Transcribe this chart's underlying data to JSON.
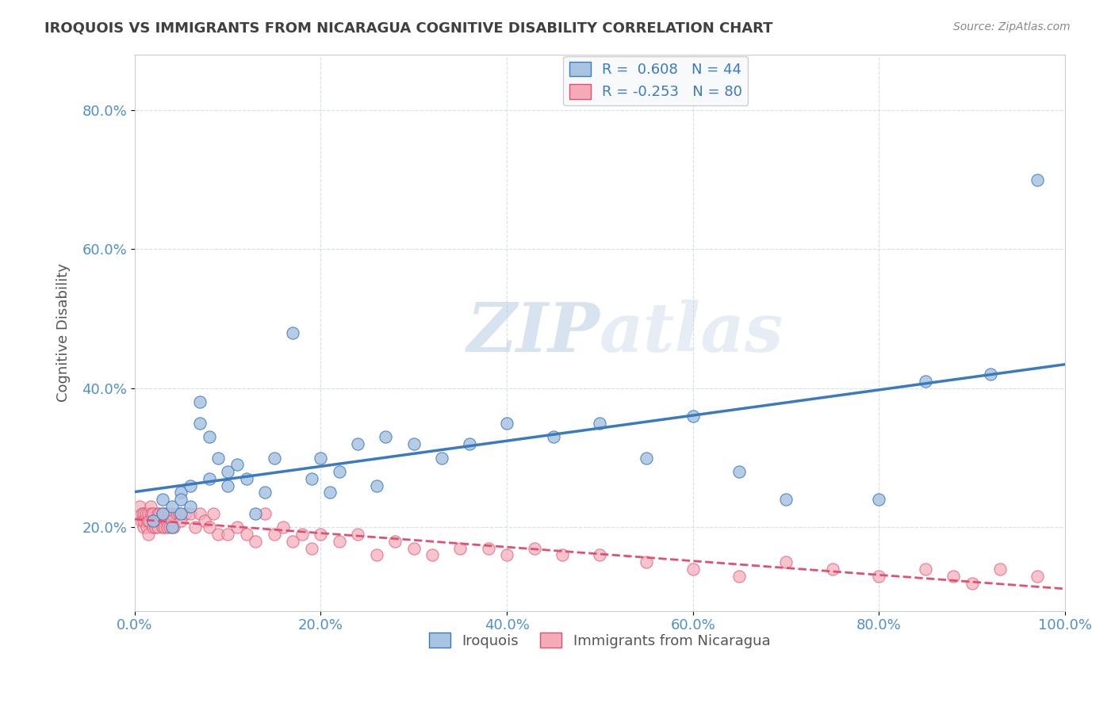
{
  "title": "IROQUOIS VS IMMIGRANTS FROM NICARAGUA COGNITIVE DISABILITY CORRELATION CHART",
  "source": "Source: ZipAtlas.com",
  "ylabel": "Cognitive Disability",
  "x_min": 0.0,
  "x_max": 1.0,
  "y_min": 0.08,
  "y_max": 0.88,
  "blue_label": "Iroquois",
  "pink_label": "Immigrants from Nicaragua",
  "blue_R": 0.608,
  "blue_N": 44,
  "pink_R": -0.253,
  "pink_N": 80,
  "blue_color": "#a8c4e0",
  "blue_line_color": "#3a7abf",
  "pink_color": "#f5aab8",
  "pink_line_color": "#e05070",
  "background_color": "#ffffff",
  "watermark_zip": "ZIP",
  "watermark_atlas": "atlas",
  "grid_color": "#c8d8e8",
  "title_color": "#404040",
  "tick_label_color": "#5090c8",
  "blue_x_data": [
    0.02,
    0.03,
    0.03,
    0.04,
    0.04,
    0.05,
    0.05,
    0.05,
    0.06,
    0.06,
    0.07,
    0.07,
    0.08,
    0.08,
    0.09,
    0.1,
    0.1,
    0.11,
    0.12,
    0.13,
    0.14,
    0.15,
    0.17,
    0.19,
    0.2,
    0.21,
    0.22,
    0.24,
    0.26,
    0.27,
    0.3,
    0.33,
    0.36,
    0.4,
    0.45,
    0.5,
    0.55,
    0.6,
    0.65,
    0.7,
    0.8,
    0.85,
    0.92,
    0.97
  ],
  "blue_y_data": [
    0.21,
    0.22,
    0.24,
    0.2,
    0.23,
    0.25,
    0.22,
    0.24,
    0.23,
    0.26,
    0.35,
    0.38,
    0.33,
    0.27,
    0.3,
    0.26,
    0.28,
    0.29,
    0.27,
    0.22,
    0.25,
    0.3,
    0.48,
    0.27,
    0.3,
    0.25,
    0.28,
    0.32,
    0.26,
    0.33,
    0.32,
    0.3,
    0.32,
    0.35,
    0.33,
    0.35,
    0.3,
    0.36,
    0.28,
    0.24,
    0.24,
    0.41,
    0.42,
    0.7
  ],
  "pink_x_data": [
    0.005,
    0.007,
    0.008,
    0.01,
    0.01,
    0.01,
    0.012,
    0.013,
    0.014,
    0.015,
    0.015,
    0.016,
    0.017,
    0.018,
    0.02,
    0.02,
    0.02,
    0.022,
    0.023,
    0.025,
    0.025,
    0.027,
    0.028,
    0.03,
    0.03,
    0.03,
    0.032,
    0.033,
    0.034,
    0.035,
    0.037,
    0.038,
    0.04,
    0.04,
    0.042,
    0.045,
    0.048,
    0.05,
    0.055,
    0.06,
    0.065,
    0.07,
    0.075,
    0.08,
    0.085,
    0.09,
    0.1,
    0.11,
    0.12,
    0.13,
    0.14,
    0.15,
    0.16,
    0.17,
    0.18,
    0.19,
    0.2,
    0.22,
    0.24,
    0.26,
    0.28,
    0.3,
    0.32,
    0.35,
    0.38,
    0.4,
    0.43,
    0.46,
    0.5,
    0.55,
    0.6,
    0.65,
    0.7,
    0.75,
    0.8,
    0.85,
    0.88,
    0.9,
    0.93,
    0.97
  ],
  "pink_y_data": [
    0.23,
    0.21,
    0.22,
    0.22,
    0.2,
    0.21,
    0.22,
    0.2,
    0.21,
    0.22,
    0.19,
    0.21,
    0.23,
    0.22,
    0.2,
    0.22,
    0.21,
    0.2,
    0.21,
    0.22,
    0.2,
    0.22,
    0.21,
    0.2,
    0.22,
    0.21,
    0.2,
    0.22,
    0.21,
    0.2,
    0.22,
    0.2,
    0.22,
    0.21,
    0.2,
    0.22,
    0.22,
    0.21,
    0.22,
    0.22,
    0.2,
    0.22,
    0.21,
    0.2,
    0.22,
    0.19,
    0.19,
    0.2,
    0.19,
    0.18,
    0.22,
    0.19,
    0.2,
    0.18,
    0.19,
    0.17,
    0.19,
    0.18,
    0.19,
    0.16,
    0.18,
    0.17,
    0.16,
    0.17,
    0.17,
    0.16,
    0.17,
    0.16,
    0.16,
    0.15,
    0.14,
    0.13,
    0.15,
    0.14,
    0.13,
    0.14,
    0.13,
    0.12,
    0.14,
    0.13
  ]
}
